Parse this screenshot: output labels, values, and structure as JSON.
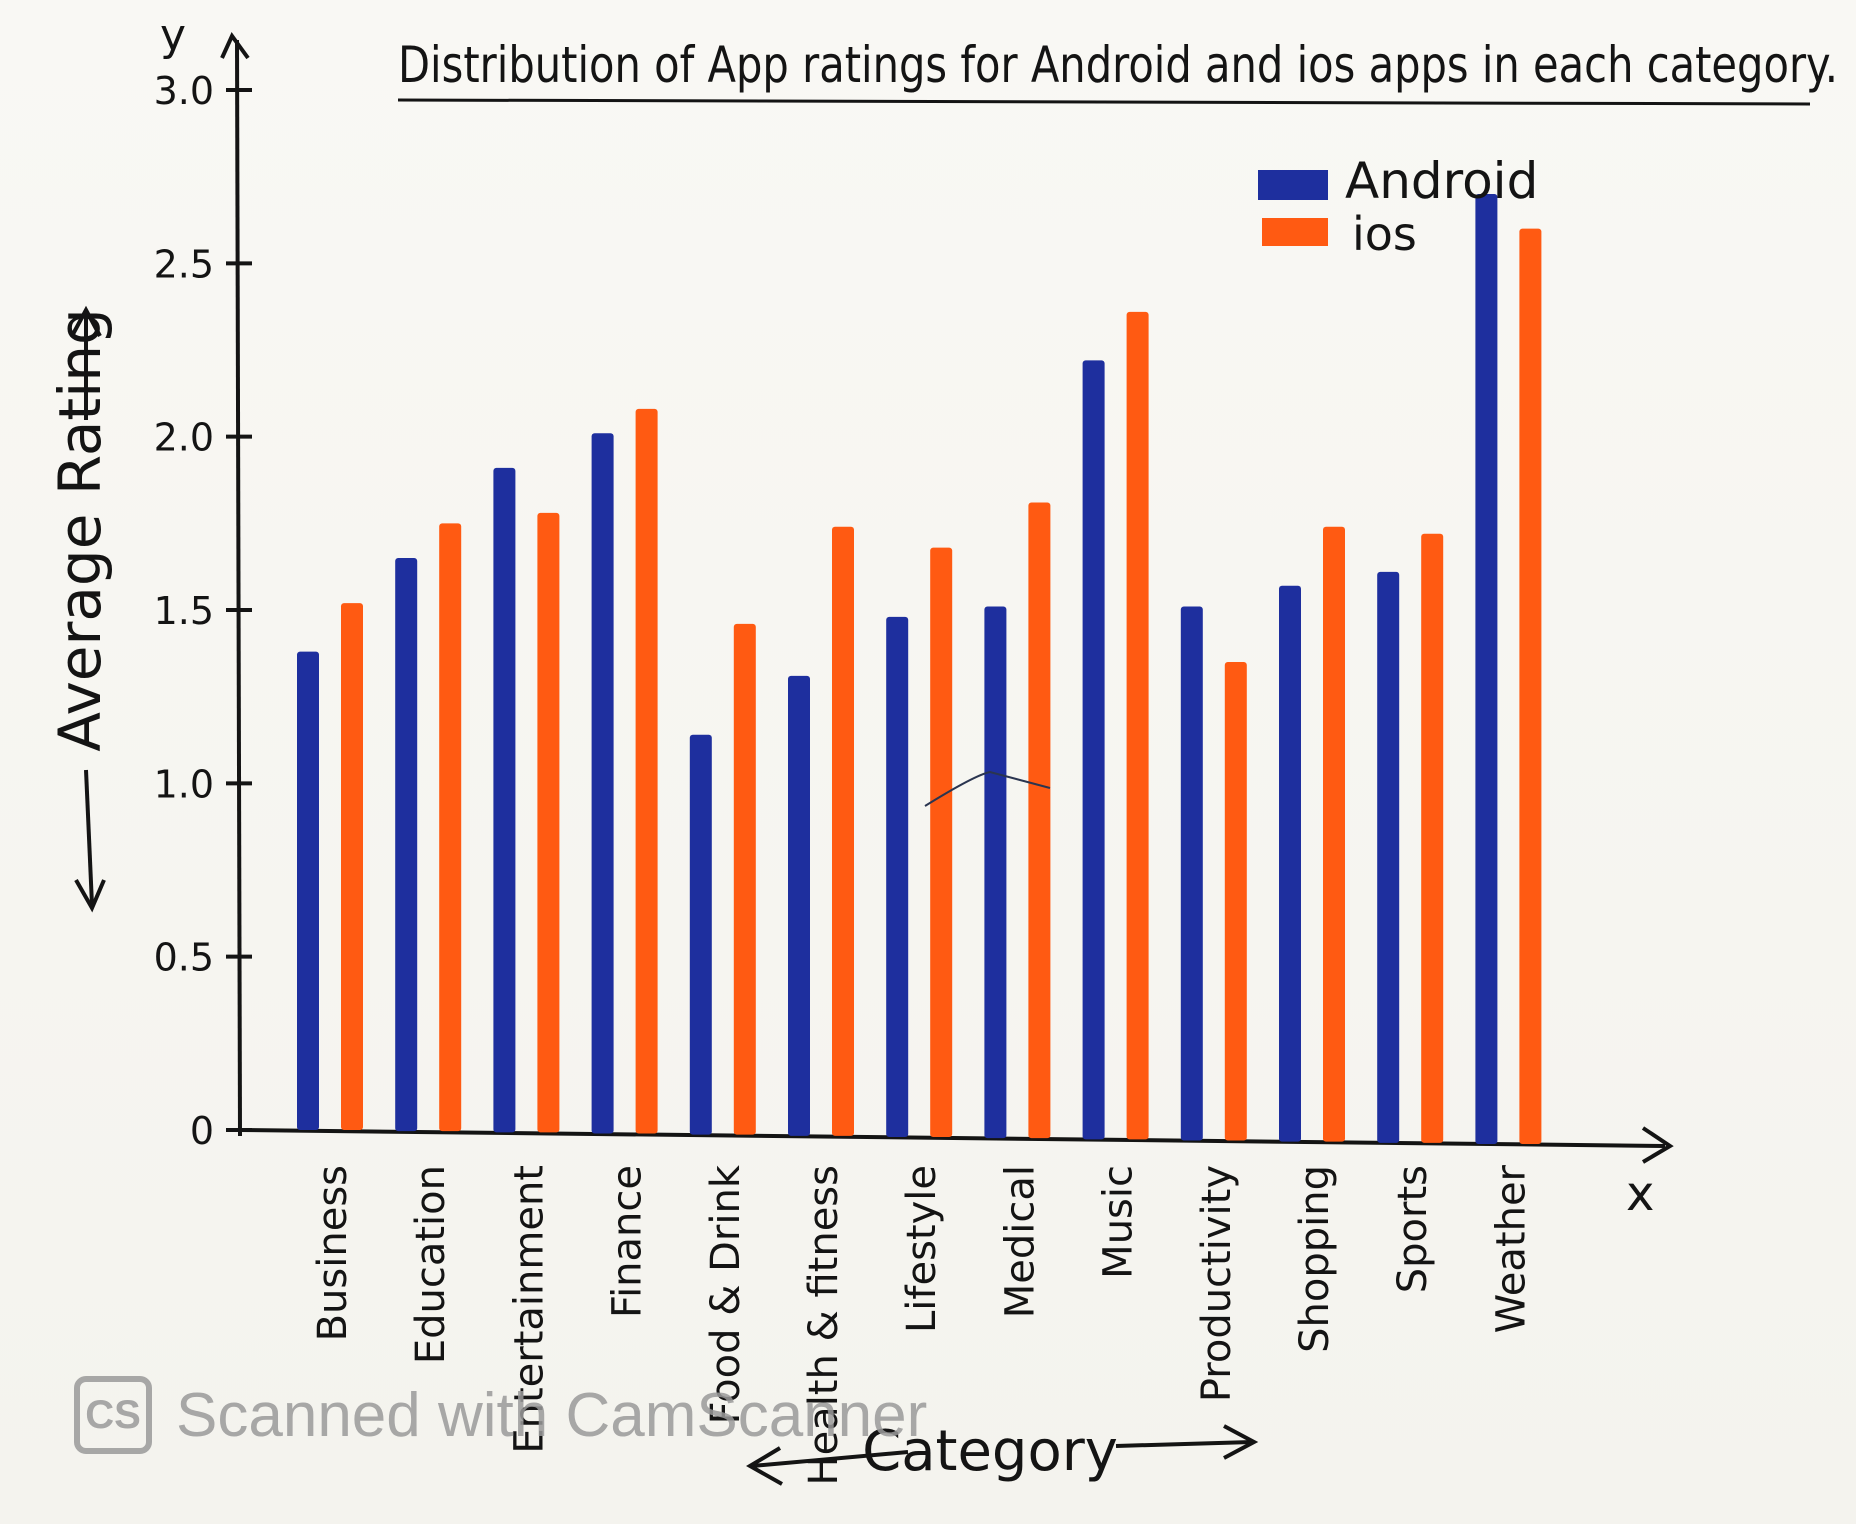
{
  "chart_data": {
    "type": "bar",
    "title": "Distribution of App ratings for Android and ios apps in each category.",
    "xlabel": "Category",
    "ylabel": "Average Rating",
    "x_axis_letter": "x",
    "y_axis_letter": "y",
    "categories": [
      "Business",
      "Education",
      "Entertainment",
      "Finance",
      "Food & Drink",
      "Health & fitness",
      "Lifestyle",
      "Medical",
      "Music",
      "Productivity",
      "Shopping",
      "Sports",
      "Weather"
    ],
    "series": [
      {
        "name": "Android",
        "color": "#1e2f9e",
        "values": [
          1.38,
          1.65,
          1.91,
          2.01,
          1.14,
          1.31,
          1.48,
          1.51,
          2.22,
          1.51,
          1.57,
          1.61,
          2.7
        ]
      },
      {
        "name": "ios",
        "color": "#ff5a12",
        "values": [
          1.52,
          1.75,
          1.78,
          2.08,
          1.46,
          1.74,
          1.68,
          1.81,
          2.36,
          1.35,
          1.74,
          1.72,
          2.6
        ]
      }
    ],
    "ylim": [
      0,
      3.0
    ],
    "yticks": [
      "0",
      "0.5",
      "1.0",
      "1.5",
      "2.0",
      "2.5",
      "3.0"
    ],
    "legend_position": "top-right",
    "grid": false
  },
  "watermark": {
    "logo": "CS",
    "text": "Scanned with CamScanner"
  }
}
